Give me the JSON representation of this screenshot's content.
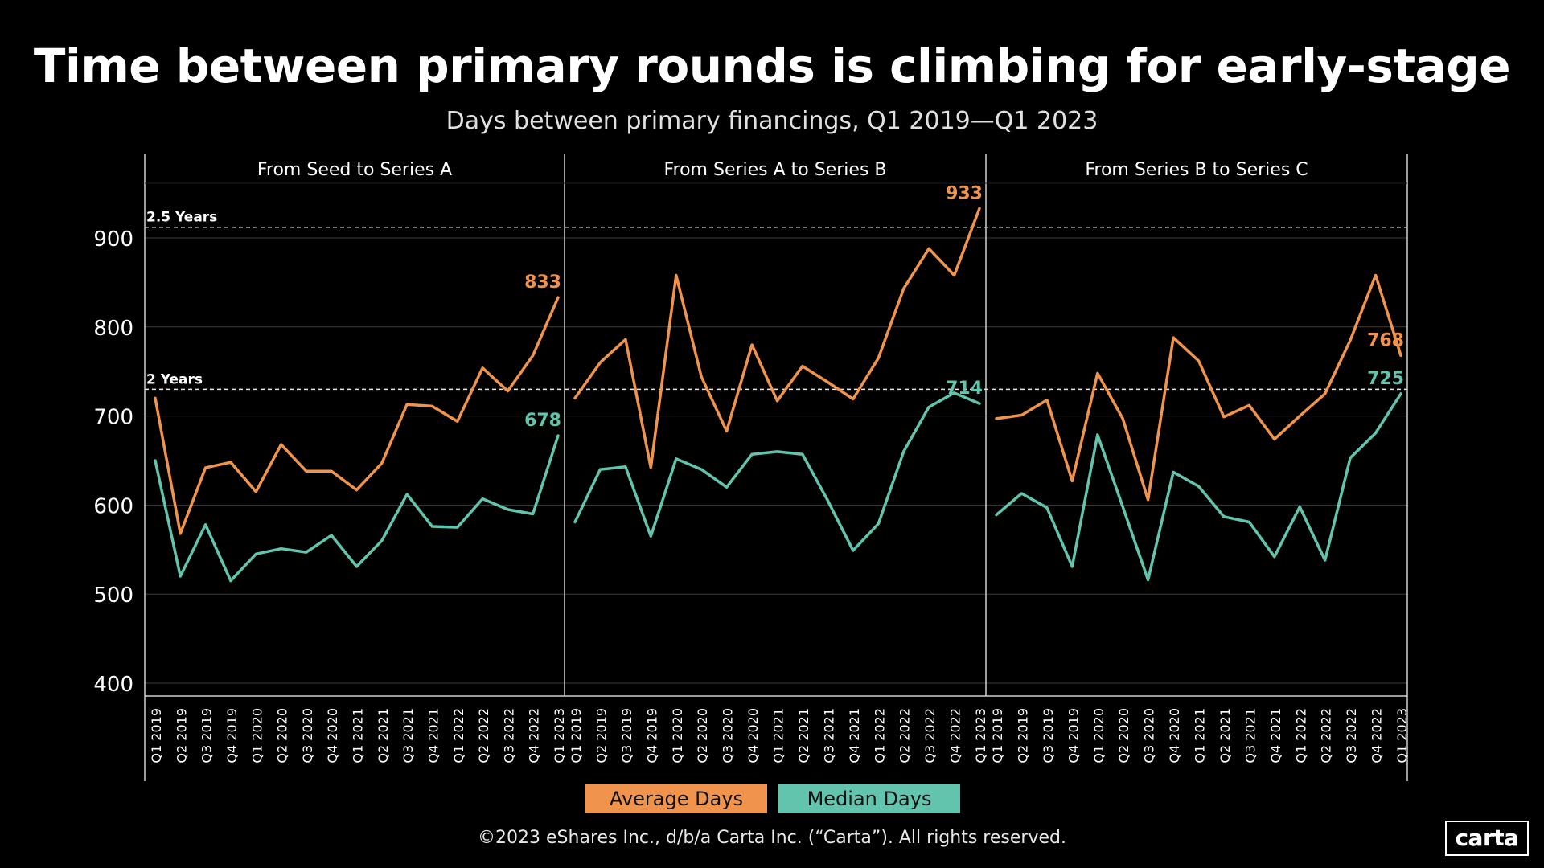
{
  "title": "Time between primary rounds is climbing for early-stage",
  "subtitle": "Days between primary financings, Q1 2019—Q1 2023",
  "footer": "©2023 eShares Inc., d/b/a Carta Inc. (“Carta”). All rights reserved.",
  "logo": "carta",
  "colors": {
    "average": "#f0944d",
    "median": "#63c4ae",
    "background": "#000000"
  },
  "chart_data": {
    "type": "line",
    "ylim": [
      400,
      950
    ],
    "yticks": [
      400,
      500,
      600,
      700,
      800,
      900
    ],
    "grid": true,
    "legend_position": "bottom",
    "legend": [
      {
        "label": "Average Days",
        "series": "average"
      },
      {
        "label": "Median Days",
        "series": "median"
      }
    ],
    "reference_lines": [
      {
        "label": "2.5 Years",
        "value": 912
      },
      {
        "label": "2 Years",
        "value": 730
      }
    ],
    "categories": [
      "Q1 2019",
      "Q2 2019",
      "Q3 2019",
      "Q4 2019",
      "Q1 2020",
      "Q2 2020",
      "Q3 2020",
      "Q4 2020",
      "Q1 2021",
      "Q2 2021",
      "Q3 2021",
      "Q4 2021",
      "Q1 2022",
      "Q2 2022",
      "Q3 2022",
      "Q4 2022",
      "Q1 2023"
    ],
    "panels": [
      {
        "title": "From Seed to Series A",
        "average": [
          720,
          568,
          642,
          648,
          615,
          668,
          638,
          638,
          617,
          647,
          713,
          711,
          694,
          754,
          728,
          768,
          833
        ],
        "median": [
          650,
          520,
          578,
          515,
          545,
          551,
          547,
          566,
          531,
          560,
          612,
          576,
          575,
          607,
          595,
          590,
          678
        ],
        "end_labels": {
          "average": "833",
          "median": "678"
        }
      },
      {
        "title": "From Series A to Series B",
        "average": [
          720,
          760,
          786,
          642,
          858,
          744,
          683,
          780,
          717,
          756,
          738,
          719,
          765,
          843,
          888,
          858,
          933
        ],
        "median": [
          581,
          640,
          643,
          565,
          652,
          640,
          620,
          657,
          660,
          657,
          605,
          549,
          579,
          660,
          710,
          726,
          714
        ],
        "end_labels": {
          "average": "933",
          "median": "714"
        }
      },
      {
        "title": "From Series B to Series C",
        "average": [
          697,
          701,
          718,
          627,
          748,
          697,
          606,
          788,
          762,
          699,
          712,
          674,
          700,
          725,
          785,
          858,
          768
        ],
        "median": [
          589,
          613,
          597,
          531,
          679,
          598,
          516,
          637,
          621,
          587,
          581,
          542,
          598,
          538,
          653,
          681,
          725
        ],
        "end_labels": {
          "average": "768",
          "median": "725"
        }
      }
    ]
  }
}
